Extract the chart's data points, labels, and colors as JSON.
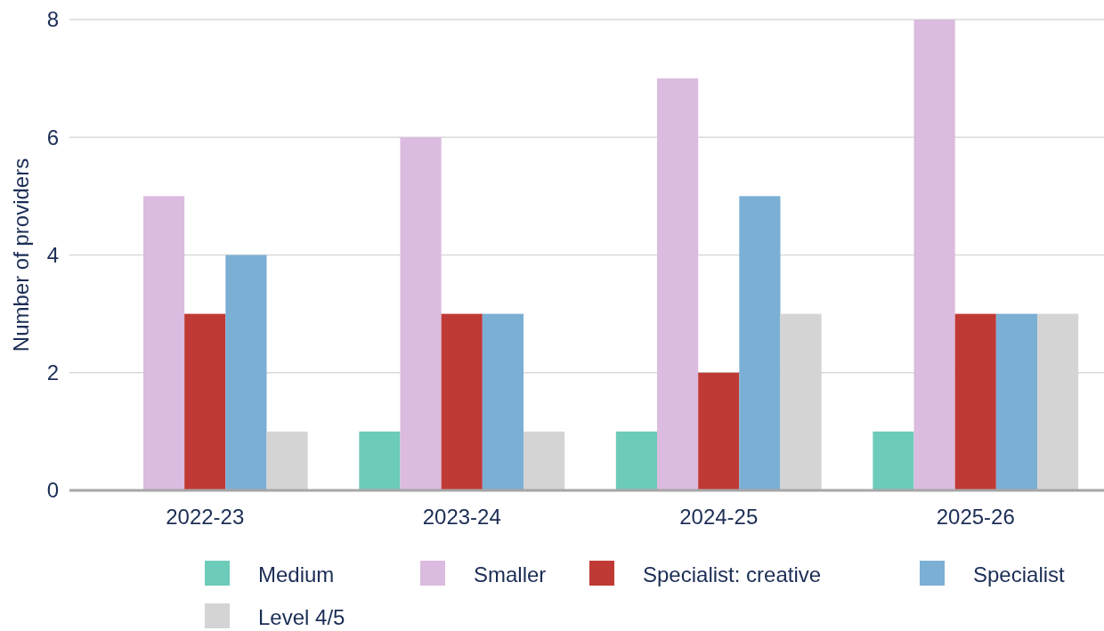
{
  "chart_data": {
    "type": "bar",
    "ylabel": "Number of providers",
    "categories": [
      "2022-23",
      "2023-24",
      "2024-25",
      "2025-26"
    ],
    "series": [
      {
        "name": "Medium",
        "color": "#6dcbb9",
        "values": [
          0,
          1,
          1,
          1
        ]
      },
      {
        "name": "Smaller",
        "color": "#dbbbdf",
        "values": [
          5,
          6,
          7,
          8
        ]
      },
      {
        "name": "Specialist: creative",
        "color": "#c03a35",
        "values": [
          3,
          3,
          2,
          3
        ]
      },
      {
        "name": "Specialist",
        "color": "#7bafd4",
        "values": [
          4,
          3,
          5,
          3
        ]
      },
      {
        "name": "Level 4/5",
        "color": "#d4d4d4",
        "values": [
          1,
          1,
          3,
          3
        ]
      }
    ],
    "ylim": [
      0,
      8
    ],
    "yticks": [
      0,
      2,
      4,
      6,
      8
    ],
    "grid": "y",
    "legend": "bottom"
  }
}
